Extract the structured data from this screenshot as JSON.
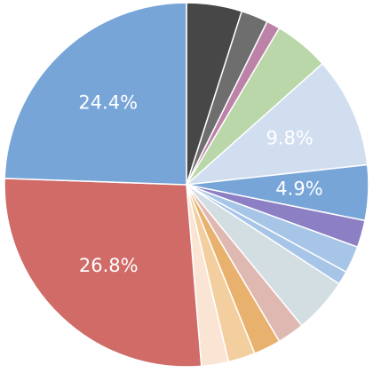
{
  "chart_data": {
    "type": "pie",
    "start_angle_deg": 0,
    "direction": "clockwise",
    "slices": [
      {
        "value": 4.9,
        "color": "#474747",
        "label": ""
      },
      {
        "value": 2.4,
        "color": "#6e6e6e",
        "label": ""
      },
      {
        "value": 1.2,
        "color": "#bd82a7",
        "label": ""
      },
      {
        "value": 4.9,
        "color": "#b9d7a8",
        "label": ""
      },
      {
        "value": 9.8,
        "color": "#d1def0",
        "label": "9.8%"
      },
      {
        "value": 4.9,
        "color": "#78a5d8",
        "label": "4.9%"
      },
      {
        "value": 2.4,
        "color": "#8c7fc4",
        "label": ""
      },
      {
        "value": 2.4,
        "color": "#a7c6e7",
        "label": ""
      },
      {
        "value": 1.2,
        "color": "#a7c6e7",
        "label": ""
      },
      {
        "value": 4.9,
        "color": "#d3dee3",
        "label": ""
      },
      {
        "value": 2.4,
        "color": "#e0b8b2",
        "label": ""
      },
      {
        "value": 2.4,
        "color": "#e9b16e",
        "label": ""
      },
      {
        "value": 2.4,
        "color": "#f3cf9f",
        "label": ""
      },
      {
        "value": 2.4,
        "color": "#fae5d5",
        "label": ""
      },
      {
        "value": 26.8,
        "color": "#d06b68",
        "label": "26.8%"
      },
      {
        "value": 24.4,
        "color": "#78a5d8",
        "label": "24.4%"
      }
    ]
  }
}
